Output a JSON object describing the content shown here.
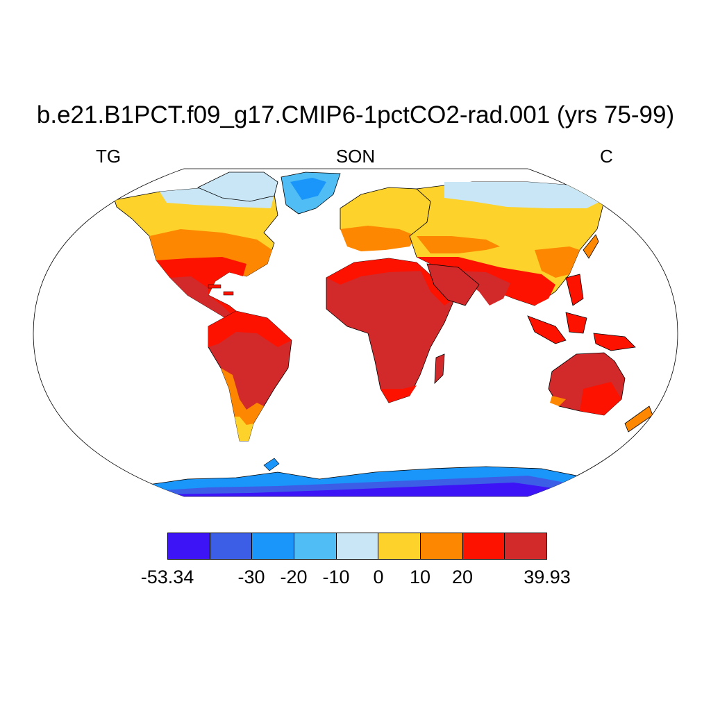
{
  "title": "b.e21.B1PCT.f09_g17.CMIP6-1pctCO2-rad.001 (yrs 75-99)",
  "variable": "TG",
  "season": "SON",
  "units": "C",
  "colorbar": {
    "colors": [
      "#3c14f5",
      "#3c5ee6",
      "#1a96fa",
      "#50bef5",
      "#c8e6f5",
      "#fdd22a",
      "#fd8700",
      "#fd1200",
      "#d22a2a"
    ],
    "labels": [
      "-53.34",
      "-30",
      "-20",
      "-10",
      "0",
      "10",
      "20",
      "39.93"
    ]
  },
  "palette": {
    "ocean": "#ffffff",
    "coast": "#000000"
  }
}
